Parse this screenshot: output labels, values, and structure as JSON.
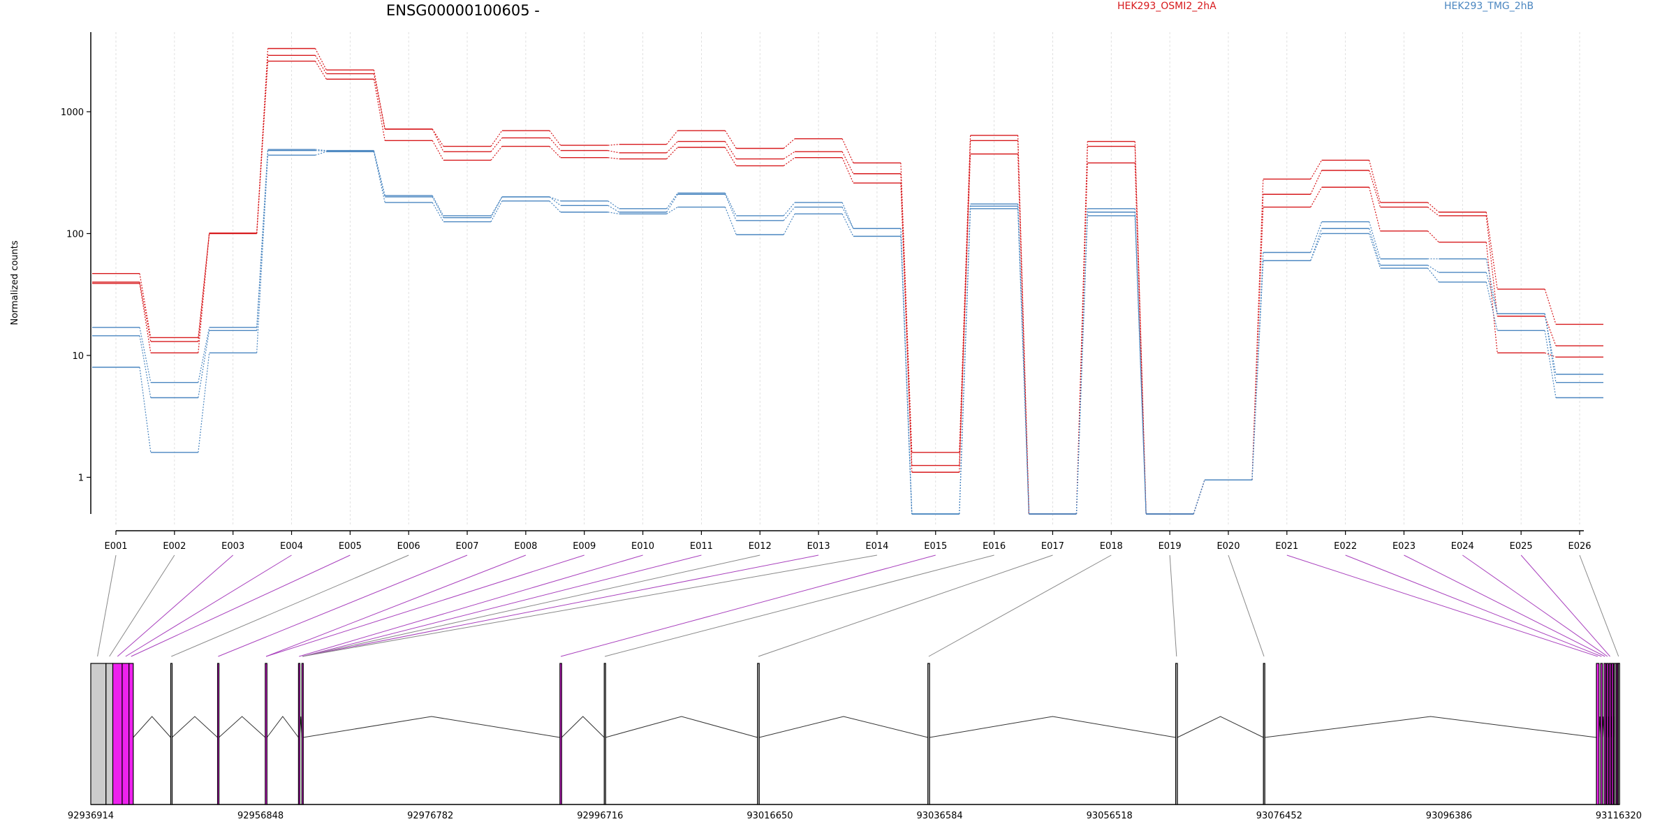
{
  "chart_data": {
    "type": "line",
    "title": "ENSG00000100605 -",
    "ylabel": "Normalized counts",
    "y_scale": "log",
    "ylim": [
      0.5,
      4500
    ],
    "y_ticks": [
      "1",
      "10",
      "100",
      "1000"
    ],
    "y_tick_values": [
      1,
      10,
      100,
      1000
    ],
    "categories": [
      "E001",
      "E002",
      "E003",
      "E004",
      "E005",
      "E006",
      "E007",
      "E008",
      "E009",
      "E010",
      "E011",
      "E012",
      "E013",
      "E014",
      "E015",
      "E016",
      "E017",
      "E018",
      "E019",
      "E020",
      "E021",
      "E022",
      "E023",
      "E024",
      "E025",
      "E026"
    ],
    "grid": "vertical dashed at exon positions",
    "legend_placement": "top",
    "series": [
      {
        "name": "HEK293_OSMI2_2hA",
        "group": "HEK293_OSMI2_2hA",
        "color": "#d7191c",
        "values": [
          47,
          14,
          100,
          3300,
          2200,
          720,
          520,
          700,
          530,
          540,
          700,
          500,
          600,
          380,
          1.6,
          640,
          0.5,
          570,
          0.5,
          0.95,
          280,
          400,
          180,
          150,
          35,
          18
        ]
      },
      {
        "name": "",
        "group": "HEK293_OSMI2_2hA",
        "color": "#d7191c",
        "values": [
          40,
          13,
          100,
          2900,
          2050,
          720,
          470,
          610,
          480,
          460,
          570,
          410,
          470,
          310,
          1.25,
          580,
          0.5,
          520,
          0.5,
          0.95,
          210,
          330,
          165,
          140,
          21,
          12
        ]
      },
      {
        "name": "",
        "group": "HEK293_OSMI2_2hA",
        "color": "#d7191c",
        "values": [
          39,
          10.5,
          101,
          2600,
          1850,
          580,
          400,
          520,
          420,
          410,
          510,
          360,
          420,
          260,
          1.1,
          450,
          0.5,
          380,
          0.5,
          0.95,
          165,
          240,
          105,
          85,
          10.5,
          9.7
        ]
      },
      {
        "name": "HEK293_TMG_2hB",
        "group": "HEK293_TMG_2hB",
        "color": "#4a86c0",
        "values": [
          17,
          6,
          17,
          490,
          480,
          205,
          140,
          200,
          185,
          160,
          215,
          140,
          180,
          110,
          0.5,
          175,
          0.5,
          160,
          0.5,
          0.95,
          70,
          125,
          62,
          62,
          22,
          7
        ]
      },
      {
        "name": "",
        "group": "HEK293_TMG_2hB",
        "color": "#4a86c0",
        "values": [
          14.5,
          4.5,
          16,
          480,
          475,
          200,
          135,
          200,
          170,
          150,
          210,
          128,
          165,
          110,
          0.5,
          168,
          0.5,
          150,
          0.5,
          0.95,
          60,
          110,
          55,
          48,
          22,
          6
        ]
      },
      {
        "name": "",
        "group": "HEK293_TMG_2hB",
        "color": "#4a86c0",
        "values": [
          8,
          1.6,
          10.5,
          440,
          470,
          180,
          125,
          185,
          150,
          145,
          165,
          98,
          145,
          95,
          0.5,
          160,
          0.5,
          140,
          0.5,
          0.95,
          60,
          100,
          52,
          40,
          16,
          4.5
        ]
      }
    ],
    "legend": [
      {
        "label": "HEK293_OSMI2_2hA",
        "color": "#d7191c"
      },
      {
        "label": "HEK293_TMG_2hB",
        "color": "#4a86c0"
      }
    ],
    "gene_model": {
      "coordinate_labels": [
        "92936914",
        "92956848",
        "92976782",
        "92996716",
        "93016650",
        "93036584",
        "93056518",
        "93076452",
        "93096386",
        "93116320"
      ],
      "coordinate_values": [
        92936914,
        92956848,
        92976782,
        92996716,
        93016650,
        93036584,
        93056518,
        93076452,
        93096386,
        93116320
      ],
      "line_color_differential": "#a83fbd",
      "line_color_normal": "#888888",
      "exon_fill_differential": "#ee22ee",
      "exon_fill_normal": "#cccccc",
      "exons": [
        {
          "id": "E001",
          "start": 92936914,
          "end": 92938700,
          "differential": false
        },
        {
          "id": "E002",
          "start": 92938700,
          "end": 92939500,
          "differential": false
        },
        {
          "id": "E003",
          "start": 92939500,
          "end": 92940600,
          "differential": true
        },
        {
          "id": "E004",
          "start": 92940600,
          "end": 92941400,
          "differential": true
        },
        {
          "id": "E005",
          "start": 92941400,
          "end": 92941900,
          "differential": true
        },
        {
          "id": "E006",
          "start": 92946300,
          "end": 92946450,
          "differential": false
        },
        {
          "id": "E007",
          "start": 92951800,
          "end": 92951950,
          "differential": true
        },
        {
          "id": "E008",
          "start": 92957400,
          "end": 92957600,
          "differential": true
        },
        {
          "id": "E009",
          "start": 92961300,
          "end": 92961450,
          "differential": true
        },
        {
          "id": "E010",
          "start": 92961700,
          "end": 92961850,
          "differential": true
        },
        {
          "id": "E011",
          "start": 92992000,
          "end": 92992200,
          "differential": true
        },
        {
          "id": "E012",
          "start": 92997200,
          "end": 92997350,
          "differential": false
        },
        {
          "id": "E013",
          "start": 93015200,
          "end": 93015400,
          "differential": false
        },
        {
          "id": "E014",
          "start": 93035200,
          "end": 93035400,
          "differential": false
        },
        {
          "id": "E015",
          "start": 93064300,
          "end": 93064500,
          "differential": false
        },
        {
          "id": "E016",
          "start": 93074600,
          "end": 93074750,
          "differential": false
        },
        {
          "id": "E017",
          "start": 93113700,
          "end": 93114000,
          "differential": true
        },
        {
          "id": "E018",
          "start": 93114200,
          "end": 93114400,
          "differential": true
        },
        {
          "id": "E019",
          "start": 93114600,
          "end": 93114800,
          "differential": true
        },
        {
          "id": "E020",
          "start": 93114900,
          "end": 93115100,
          "differential": true
        },
        {
          "id": "E021",
          "start": 93115200,
          "end": 93115400,
          "differential": true
        },
        {
          "id": "E022",
          "start": 93115500,
          "end": 93115700,
          "differential": true
        },
        {
          "id": "E023",
          "start": 93115800,
          "end": 93116000,
          "differential": false
        },
        {
          "id": "E024",
          "start": 93116050,
          "end": 93116200,
          "differential": true
        },
        {
          "id": "E025",
          "start": 93116200,
          "end": 93116260,
          "differential": true
        },
        {
          "id": "E026",
          "start": 93116260,
          "end": 93116320,
          "differential": false
        }
      ],
      "connectors": [
        {
          "exon": "E001",
          "target": 92937700,
          "differential": false
        },
        {
          "exon": "E002",
          "target": 92939100,
          "differential": false
        },
        {
          "exon": "E003",
          "target": 92940050,
          "differential": true
        },
        {
          "exon": "E004",
          "target": 92941000,
          "differential": true
        },
        {
          "exon": "E005",
          "target": 92941650,
          "differential": true
        },
        {
          "exon": "E006",
          "target": 92946370,
          "differential": false
        },
        {
          "exon": "E007",
          "target": 92951870,
          "differential": true
        },
        {
          "exon": "E008",
          "target": 92957500,
          "differential": true
        },
        {
          "exon": "E009",
          "target": 92957500,
          "differential": true
        },
        {
          "exon": "E010",
          "target": 92961370,
          "differential": true
        },
        {
          "exon": "E011",
          "target": 92961770,
          "differential": true
        },
        {
          "exon": "E012",
          "target": 92961770,
          "differential": false
        },
        {
          "exon": "E013",
          "target": 92961770,
          "differential": true
        },
        {
          "exon": "E014",
          "target": 92961770,
          "differential": false
        },
        {
          "exon": "E015",
          "target": 92992100,
          "differential": true
        },
        {
          "exon": "E016",
          "target": 92997270,
          "differential": false
        },
        {
          "exon": "E017",
          "target": 93015300,
          "differential": false
        },
        {
          "exon": "E018",
          "target": 93035300,
          "differential": false
        },
        {
          "exon": "E019",
          "target": 93064400,
          "differential": false
        },
        {
          "exon": "E020",
          "target": 93074670,
          "differential": false
        },
        {
          "exon": "E021",
          "target": 93113850,
          "differential": true
        },
        {
          "exon": "E022",
          "target": 93114300,
          "differential": true
        },
        {
          "exon": "E023",
          "target": 93114700,
          "differential": true
        },
        {
          "exon": "E024",
          "target": 93115000,
          "differential": true
        },
        {
          "exon": "E025",
          "target": 93115300,
          "differential": true
        },
        {
          "exon": "E026",
          "target": 93116300,
          "differential": false
        }
      ]
    }
  }
}
